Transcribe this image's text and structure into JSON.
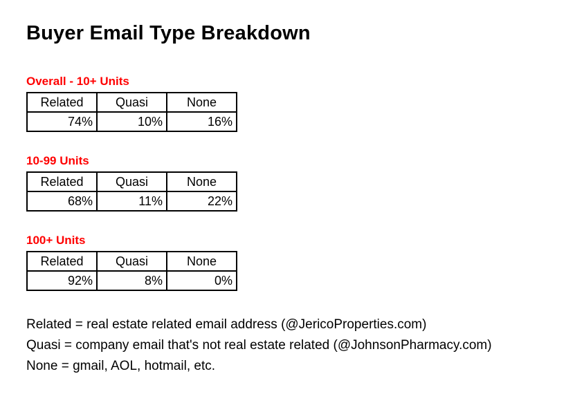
{
  "page": {
    "title": "Buyer Email Type Breakdown"
  },
  "colors": {
    "section_label": "#ff0000",
    "text": "#000000",
    "table_border": "#000000",
    "background": "#ffffff"
  },
  "tables": [
    {
      "label": "Overall - 10+ Units",
      "headers": [
        "Related",
        "Quasi",
        "None"
      ],
      "values": [
        "74%",
        "10%",
        "16%"
      ]
    },
    {
      "label": "10-99 Units",
      "headers": [
        "Related",
        "Quasi",
        "None"
      ],
      "values": [
        "68%",
        "11%",
        "22%"
      ]
    },
    {
      "label": "100+ Units",
      "headers": [
        "Related",
        "Quasi",
        "None"
      ],
      "values": [
        "92%",
        "8%",
        "0%"
      ]
    }
  ],
  "footnotes": [
    "Related = real estate related email address (@JericoProperties.com)",
    "Quasi = company email that's not real estate related (@JohnsonPharmacy.com)",
    "None = gmail, AOL, hotmail, etc."
  ]
}
